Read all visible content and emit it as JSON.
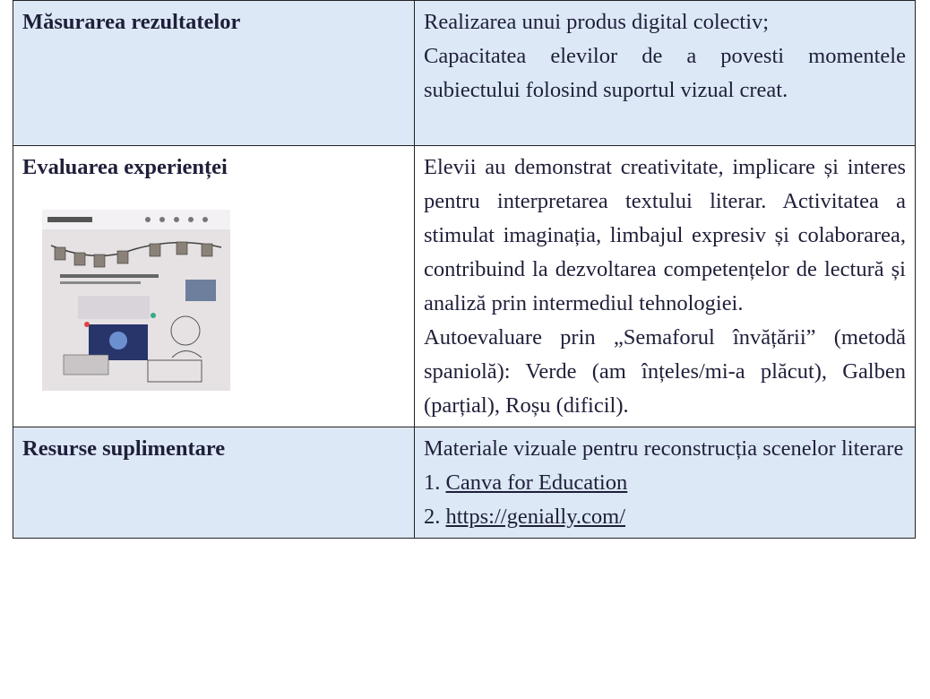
{
  "table": {
    "rows": [
      {
        "label": "Măsurarea rezultatelor",
        "paragraphs": [
          "Realizarea unui produs digital colectiv;",
          "Capacitatea elevilor de a povesti momentele subiectului folosind suportul vizual creat."
        ]
      },
      {
        "label": "Evaluarea experienței",
        "paragraphs": [
          "Elevii au demonstrat creativitate, implicare și interes pentru interpretarea textului literar. Activitatea a stimulat imaginația, limbajul expresiv și colaborarea, contribuind la dezvoltarea competențelor de lectură și analiză prin intermediul tehnologiei.",
          "Autoevaluare prin „Semaforul învățării” (metodă spaniolă): Verde (am înțeles/mi-a plăcut), Galben (parțial), Roșu (dificil)."
        ]
      },
      {
        "label": "Resurse suplimentare",
        "paragraphs": [
          "Materiale vizuale pentru reconstrucția scenelor literare"
        ],
        "links": [
          {
            "number": "1.",
            "text": "Canva for Education"
          },
          {
            "number": "2.",
            "text": "https://genially.com/"
          }
        ]
      }
    ]
  }
}
